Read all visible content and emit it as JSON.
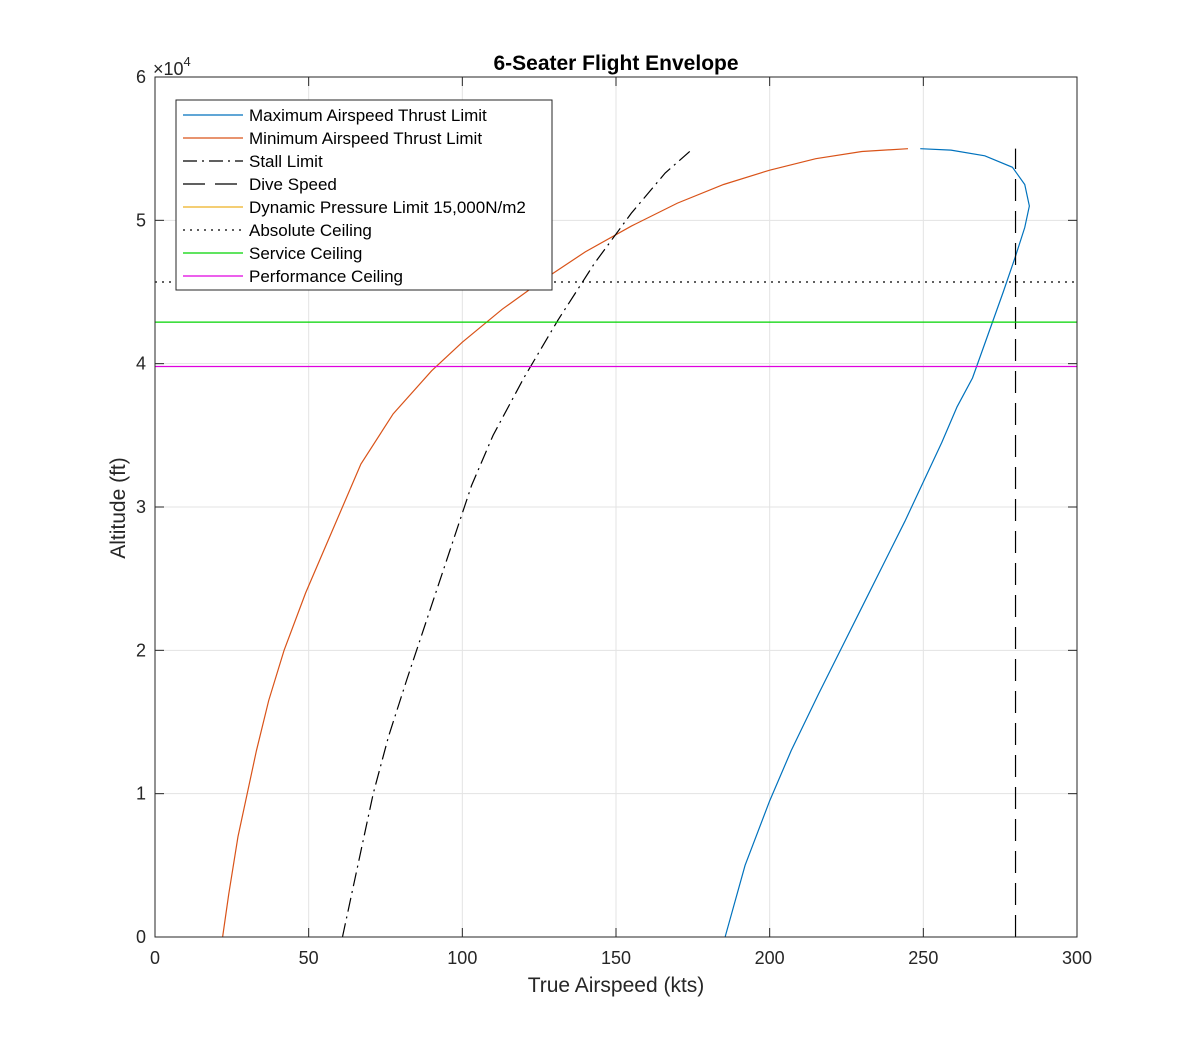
{
  "chart_data": {
    "type": "line",
    "title": "6-Seater Flight Envelope",
    "xlabel": "True Airspeed (kts)",
    "ylabel": "Altitude (ft)",
    "xlim": [
      0,
      300
    ],
    "ylim": [
      0,
      60000
    ],
    "x_ticks": [
      "0",
      "50",
      "100",
      "150",
      "200",
      "250",
      "300"
    ],
    "y_ticks": [
      "0",
      "1",
      "2",
      "3",
      "4",
      "5",
      "6"
    ],
    "y_exponent_label": {
      "base": "×10",
      "power": "4"
    },
    "grid": true,
    "legend_position": "top-left",
    "series": [
      {
        "name": "Maximum Airspeed Thrust Limit",
        "color": "#0072BD",
        "style": "solid",
        "points": [
          [
            185.5,
            0
          ],
          [
            192,
            5000
          ],
          [
            200,
            9500
          ],
          [
            207,
            13000
          ],
          [
            216,
            17000
          ],
          [
            230,
            23000
          ],
          [
            244,
            29000
          ],
          [
            256,
            34500
          ],
          [
            261,
            37000
          ],
          [
            266,
            39000
          ],
          [
            271,
            42000
          ],
          [
            276,
            45000
          ],
          [
            280,
            47500
          ],
          [
            283,
            49500
          ],
          [
            284.5,
            51000
          ],
          [
            283,
            52500
          ],
          [
            279,
            53700
          ],
          [
            270,
            54500
          ],
          [
            259,
            54900
          ],
          [
            249,
            55000
          ]
        ]
      },
      {
        "name": "Minimum Airspeed Thrust Limit",
        "color": "#D95319",
        "style": "solid",
        "points": [
          [
            22,
            0
          ],
          [
            24,
            3000
          ],
          [
            27,
            7000
          ],
          [
            30,
            10000
          ],
          [
            33,
            13000
          ],
          [
            37,
            16500
          ],
          [
            42,
            20000
          ],
          [
            49,
            24000
          ],
          [
            57,
            28000
          ],
          [
            67,
            33000
          ],
          [
            77.5,
            36500
          ],
          [
            90,
            39500
          ],
          [
            100,
            41500
          ],
          [
            113,
            43800
          ],
          [
            126,
            45800
          ],
          [
            140,
            47800
          ],
          [
            155,
            49600
          ],
          [
            170,
            51200
          ],
          [
            185,
            52500
          ],
          [
            200,
            53500
          ],
          [
            215,
            54300
          ],
          [
            230,
            54800
          ],
          [
            245,
            55000
          ]
        ]
      },
      {
        "name": "Stall Limit",
        "color": "#000000",
        "style": "dashdot",
        "points": [
          [
            61,
            0
          ],
          [
            64,
            3000
          ],
          [
            67,
            6000
          ],
          [
            71,
            10000
          ],
          [
            76,
            14000
          ],
          [
            82,
            18000
          ],
          [
            89,
            22500
          ],
          [
            96,
            27000
          ],
          [
            103,
            31500
          ],
          [
            110,
            35000
          ],
          [
            120,
            39000
          ],
          [
            131,
            43000
          ],
          [
            143,
            47000
          ],
          [
            155,
            50500
          ],
          [
            166,
            53300
          ],
          [
            175,
            55000
          ]
        ]
      },
      {
        "name": "Dive Speed",
        "color": "#000000",
        "style": "dashed",
        "points": [
          [
            280,
            0
          ],
          [
            280,
            55000
          ]
        ]
      },
      {
        "name": "Dynamic Pressure Limit 15,000N/m2",
        "color": "#EDB120",
        "style": "solid",
        "points": []
      },
      {
        "name": "Absolute Ceiling",
        "color": "#000000",
        "style": "dotted",
        "points": [
          [
            0,
            45700
          ],
          [
            300,
            45700
          ]
        ]
      },
      {
        "name": "Service Ceiling",
        "color": "#00D400",
        "style": "solid",
        "points": [
          [
            0,
            42900
          ],
          [
            300,
            42900
          ]
        ]
      },
      {
        "name": "Performance Ceiling",
        "color": "#E000E0",
        "style": "solid",
        "points": [
          [
            0,
            39800
          ],
          [
            300,
            39800
          ]
        ]
      }
    ]
  }
}
